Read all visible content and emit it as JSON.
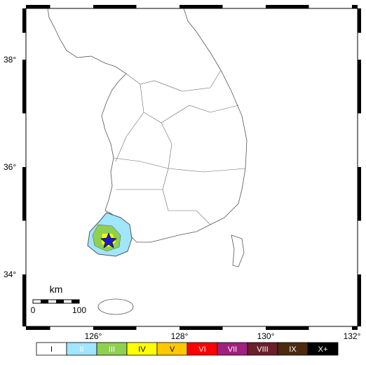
{
  "axes": {
    "lat_labels": [
      "38°",
      "36°",
      "34°"
    ],
    "lon_labels": [
      "126°",
      "128°",
      "130°",
      "132°"
    ]
  },
  "scale_bar": {
    "unit": "km",
    "labels": [
      "0",
      "100"
    ]
  },
  "legend": {
    "levels": [
      "I",
      "II",
      "III",
      "IV",
      "V",
      "VI",
      "VII",
      "VIII",
      "IX",
      "X+"
    ]
  }
}
